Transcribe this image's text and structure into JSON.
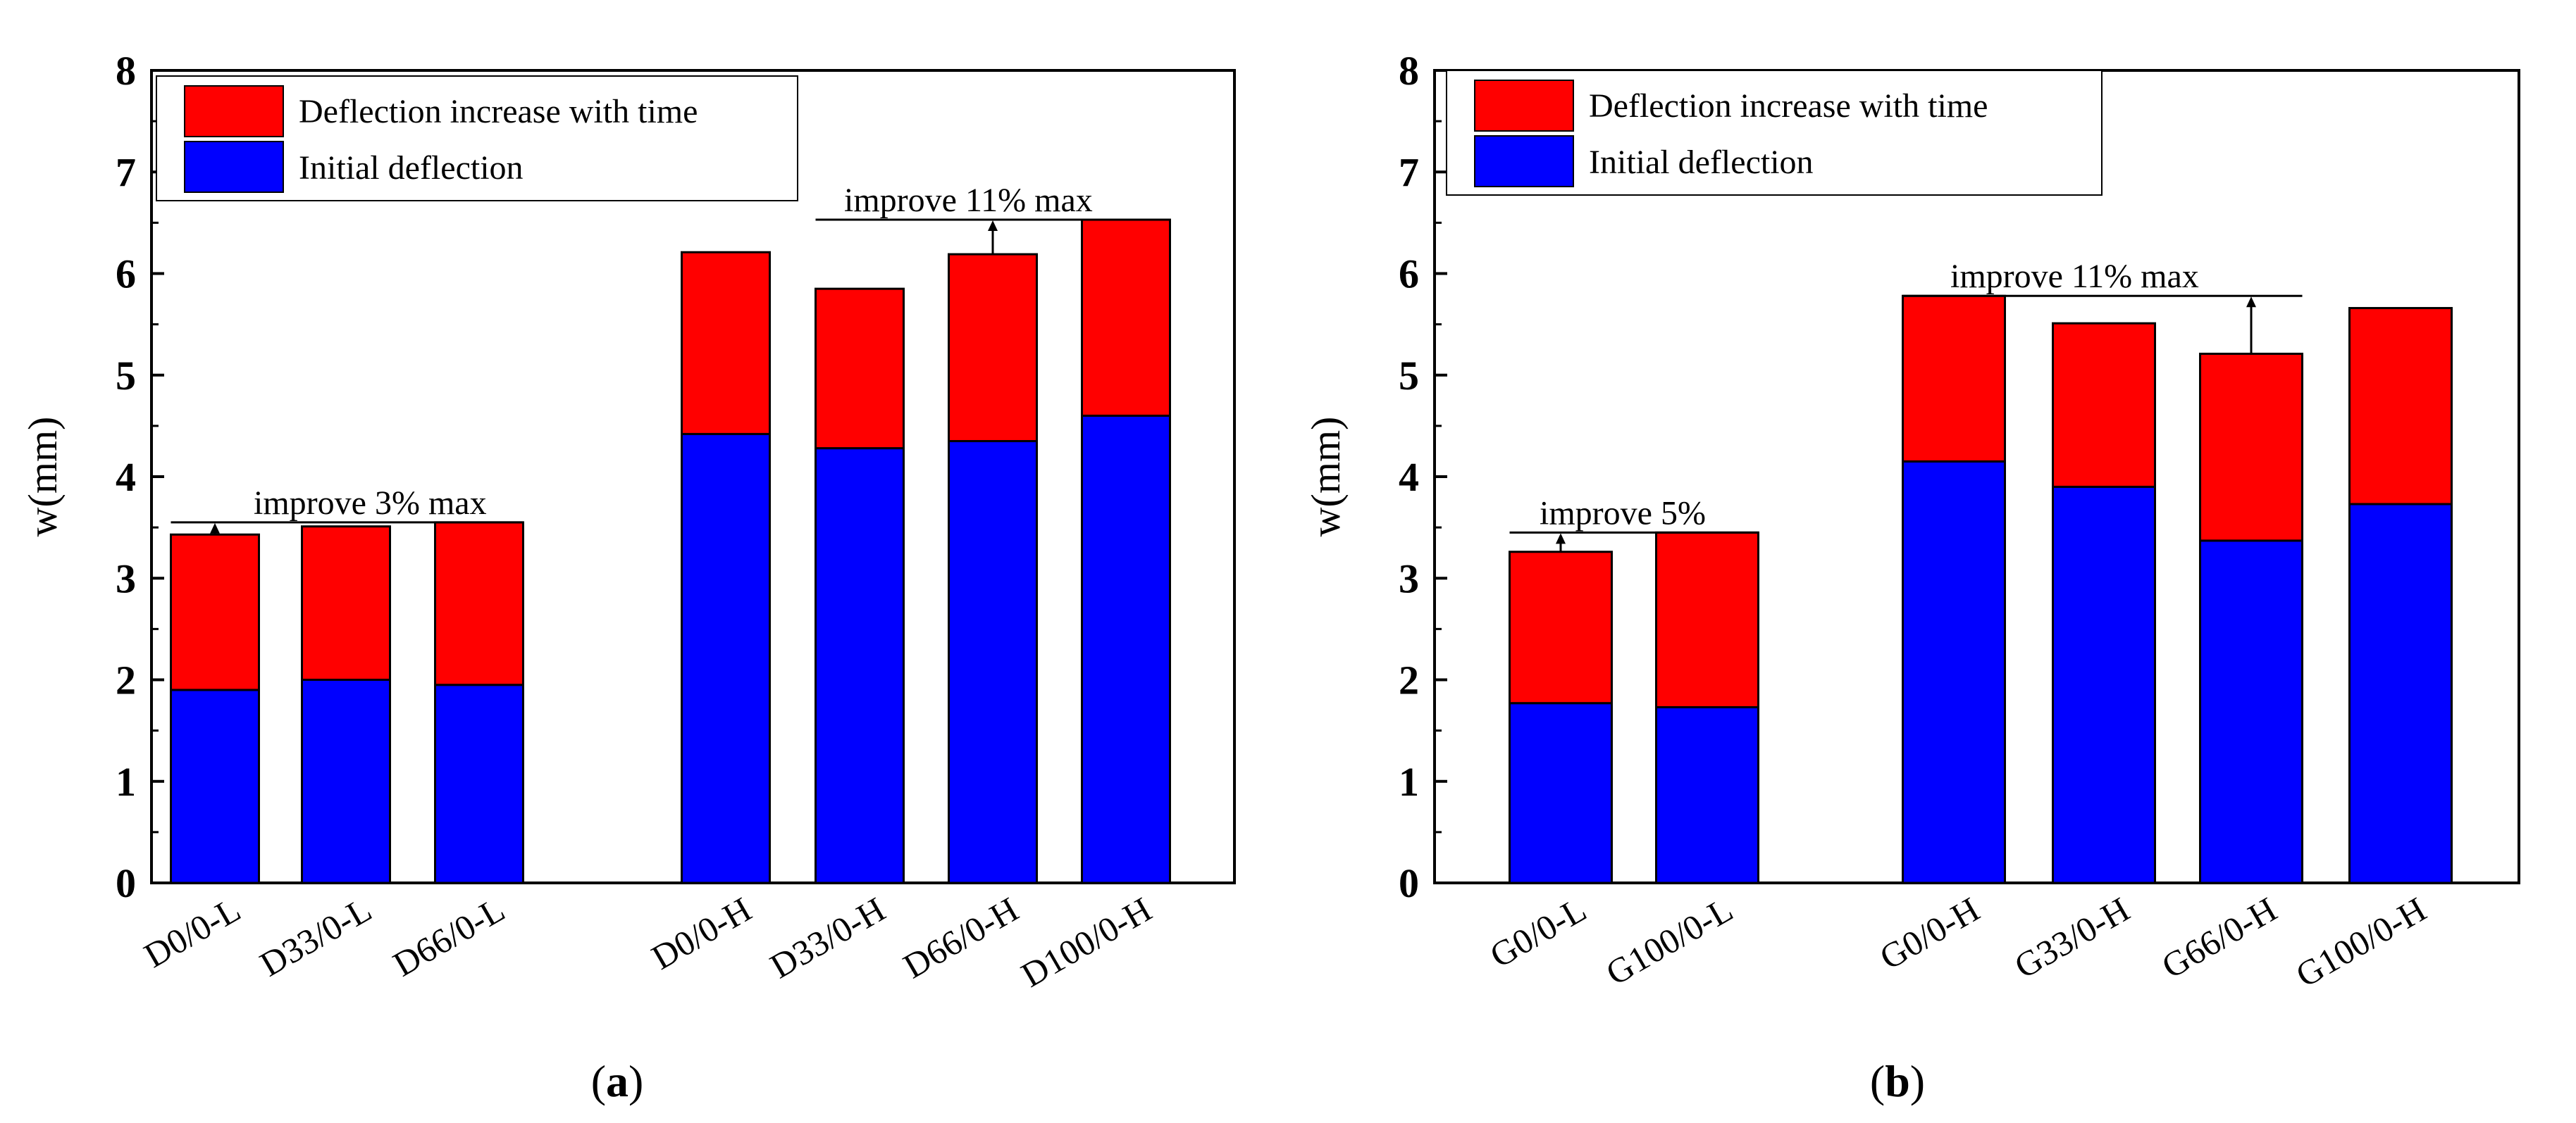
{
  "colors": {
    "deflection_increase": "#ff0000",
    "initial_deflection": "#0000ff",
    "axis": "#000000",
    "background": "#ffffff"
  },
  "chart_data": [
    {
      "panel": "a",
      "panel_label": {
        "open": "(",
        "letter": "a",
        "close": ")"
      },
      "type": "bar",
      "stacked": true,
      "ylabel": "w(mm)",
      "xlabel": "",
      "ylim": [
        0,
        8
      ],
      "yticks": [
        "0",
        "1",
        "2",
        "3",
        "4",
        "5",
        "6",
        "7",
        "8"
      ],
      "categories": [
        "D0/0-L",
        "D33/0-L",
        "D66/0-L",
        "D0/0-H",
        "D33/0-H",
        "D66/0-H",
        "D100/0-H"
      ],
      "legend": [
        "Deflection increase with time",
        "Initial deflection"
      ],
      "legend_position": "top-left",
      "series": [
        {
          "name": "Initial deflection",
          "color": "#0000ff",
          "values": [
            1.9,
            2.0,
            1.95,
            4.42,
            4.28,
            4.35,
            4.6
          ]
        },
        {
          "name": "Deflection increase with time",
          "color": "#ff0000",
          "values": [
            1.53,
            1.51,
            1.6,
            1.79,
            1.57,
            1.84,
            1.93
          ]
        }
      ],
      "totals": [
        3.43,
        3.51,
        3.55,
        6.21,
        5.85,
        6.19,
        6.53
      ],
      "annotations": [
        {
          "text": "improve 3% max",
          "from_category": 0,
          "to_category": 2,
          "level": 3.55
        },
        {
          "text": "improve 11% max",
          "from_category": 4,
          "to_category": 6,
          "level": 6.53
        }
      ]
    },
    {
      "panel": "b",
      "panel_label": {
        "open": "(",
        "letter": "b",
        "close": ")"
      },
      "type": "bar",
      "stacked": true,
      "ylabel": "w(mm)",
      "xlabel": "",
      "ylim": [
        0,
        8
      ],
      "yticks": [
        "0",
        "1",
        "2",
        "3",
        "4",
        "5",
        "6",
        "7",
        "8"
      ],
      "categories": [
        "G0/0-L",
        "G100/0-L",
        "G0/0-H",
        "G33/0-H",
        "G66/0-H",
        "G100/0-H"
      ],
      "legend": [
        "Deflection increase with time",
        "Initial deflection"
      ],
      "legend_position": "top-left",
      "series": [
        {
          "name": "Initial deflection",
          "color": "#0000ff",
          "values": [
            1.77,
            1.73,
            4.15,
            3.9,
            3.37,
            3.73
          ]
        },
        {
          "name": "Deflection increase with time",
          "color": "#ff0000",
          "values": [
            1.49,
            1.72,
            1.63,
            1.61,
            1.84,
            1.93
          ]
        }
      ],
      "totals": [
        3.26,
        3.45,
        5.78,
        5.51,
        5.21,
        5.66
      ],
      "annotations": [
        {
          "text": "improve 5%",
          "from_category": 0,
          "to_category": 1,
          "level": 3.45
        },
        {
          "text": "improve 11% max",
          "from_category": 2,
          "to_category": 4,
          "level": 5.78
        }
      ]
    }
  ]
}
